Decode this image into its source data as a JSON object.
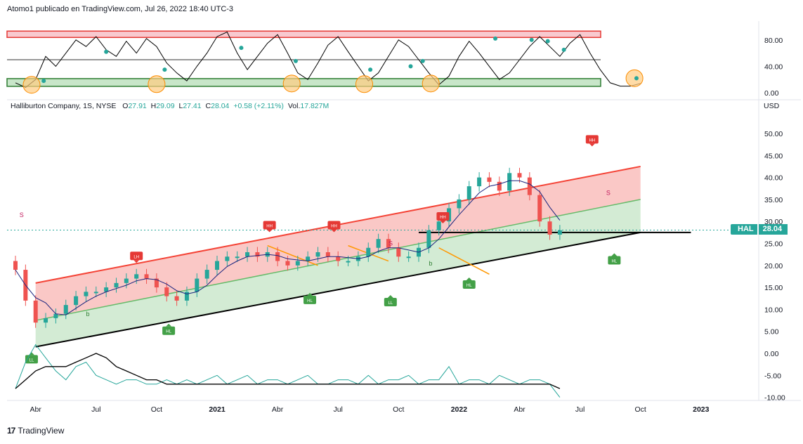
{
  "header": {
    "text": "Atomo1 publicado en TradingView.com, Jul 26, 2022 18:40 UTC-3"
  },
  "legend": {
    "symbol": "Halliburton Company, 1S, NYSE",
    "o_label": "O",
    "o": "27.91",
    "h_label": "H",
    "h": "29.09",
    "l_label": "L",
    "l": "27.41",
    "c_label": "C",
    "c": "28.04",
    "change": "+0.58 (+2.11%)",
    "vol_label": "Vol.",
    "vol": "17.827M"
  },
  "price_tag": {
    "ticker": "HAL",
    "price": "28.04"
  },
  "currency": "USD",
  "footer": {
    "brand": "TradingView"
  },
  "colors": {
    "up": "#26a69a",
    "down": "#ef5350",
    "channel_top": "#f44336",
    "channel_mid": "#66bb6a",
    "channel_bottom": "#000000"
  },
  "chart_data": [
    {
      "type": "line",
      "name_hint": "oscillator",
      "ylim": [
        0,
        100
      ],
      "y_ticks": [
        "80.00",
        "40.00",
        "0.00"
      ],
      "levels": [
        88,
        50,
        15
      ],
      "x_month": [
        0,
        0.5,
        1,
        1.5,
        2,
        2.5,
        3,
        3.5,
        4,
        4.5,
        5,
        5.5,
        6,
        6.5,
        7,
        7.5,
        8,
        8.5,
        9,
        9.5,
        10,
        10.5,
        11,
        11.5,
        12,
        12.5,
        13,
        13.5,
        14,
        14.5,
        15,
        15.5,
        16,
        16.5,
        17,
        17.5,
        18,
        18.5,
        19,
        19.5,
        20,
        20.5,
        21,
        21.5,
        22,
        22.5,
        23,
        23.5,
        24,
        24.5,
        25,
        25.5,
        26,
        26.5,
        27,
        27.5,
        28,
        28.5,
        29,
        29.5,
        30,
        30.5,
        31
      ],
      "values": [
        15,
        8,
        20,
        55,
        40,
        60,
        80,
        70,
        85,
        65,
        55,
        78,
        60,
        82,
        70,
        45,
        30,
        18,
        40,
        60,
        85,
        92,
        60,
        35,
        55,
        75,
        88,
        60,
        30,
        20,
        45,
        72,
        85,
        62,
        40,
        18,
        30,
        55,
        80,
        70,
        50,
        30,
        12,
        25,
        55,
        78,
        60,
        40,
        20,
        30,
        50,
        70,
        85,
        70,
        55,
        75,
        88,
        60,
        35,
        15,
        10,
        10,
        14
      ],
      "dots": [
        {
          "x": 1.4,
          "y": 18
        },
        {
          "x": 4.5,
          "y": 62
        },
        {
          "x": 7.4,
          "y": 35
        },
        {
          "x": 11.2,
          "y": 68
        },
        {
          "x": 13.9,
          "y": 48
        },
        {
          "x": 17.6,
          "y": 35
        },
        {
          "x": 19.6,
          "y": 40
        },
        {
          "x": 20.2,
          "y": 48
        },
        {
          "x": 23.8,
          "y": 82
        },
        {
          "x": 25.6,
          "y": 80
        },
        {
          "x": 26.4,
          "y": 78
        },
        {
          "x": 27.2,
          "y": 65
        },
        {
          "x": 30.8,
          "y": 22
        }
      ],
      "circles": [
        {
          "x": 0.8,
          "y": 12
        },
        {
          "x": 7.0,
          "y": 13
        },
        {
          "x": 13.7,
          "y": 14
        },
        {
          "x": 17.3,
          "y": 13
        },
        {
          "x": 20.6,
          "y": 14
        },
        {
          "x": 30.7,
          "y": 22
        }
      ]
    },
    {
      "type": "candlestick",
      "ylim": [
        -10,
        55
      ],
      "y_ticks": [
        "50.00",
        "45.00",
        "40.00",
        "35.00",
        "30.00",
        "25.00",
        "20.00",
        "15.00",
        "10.00",
        "5.00",
        "0.00",
        "-5.00",
        "-10.00"
      ],
      "x_labels": [
        "Abr",
        "Jul",
        "Oct",
        "2021",
        "Abr",
        "Jul",
        "Oct",
        "2022",
        "Abr",
        "Jul",
        "Oct",
        "2023"
      ],
      "x_label_month": [
        1,
        4,
        7,
        10,
        13,
        16,
        19,
        22,
        25,
        28,
        31,
        34
      ],
      "bold_labels": [
        "2021",
        "2022",
        "2023"
      ],
      "current_price": 28.04,
      "ohlc_month_step": 0.5,
      "closes": [
        19,
        12,
        7,
        8,
        9,
        11,
        13,
        14,
        14,
        15,
        16,
        17,
        18,
        17,
        15,
        13,
        12,
        14,
        17,
        19,
        21,
        22,
        22,
        23,
        22,
        23,
        21,
        20,
        21,
        22,
        23,
        22,
        21,
        21,
        22,
        24,
        26,
        24,
        22,
        22,
        24,
        28,
        30,
        33,
        35,
        38,
        40,
        39,
        37,
        41,
        40,
        36,
        30,
        27,
        28
      ],
      "channel": {
        "top": [
          [
            1,
            16
          ],
          [
            31,
            42.5
          ]
        ],
        "mid": [
          [
            1,
            7.5
          ],
          [
            31,
            35
          ]
        ],
        "bottom": [
          [
            1,
            1.5
          ],
          [
            31,
            27.5
          ]
        ],
        "support": [
          [
            20,
            27.5
          ],
          [
            33.5,
            27.5
          ]
        ]
      },
      "trend_breaks": [
        [
          [
            12.5,
            24.5
          ],
          [
            15,
            20
          ]
        ],
        [
          [
            16.5,
            24.5
          ],
          [
            18.5,
            21
          ]
        ],
        [
          [
            21,
            24
          ],
          [
            23.5,
            18
          ]
        ]
      ],
      "markers": [
        {
          "text": "LL",
          "kind": "low",
          "x": 0.8,
          "y": -1.5
        },
        {
          "text": "LH",
          "kind": "high",
          "x": 6.0,
          "y": 22
        },
        {
          "text": "HL",
          "kind": "low",
          "x": 7.6,
          "y": 5
        },
        {
          "text": "HH",
          "kind": "high",
          "x": 12.6,
          "y": 29
        },
        {
          "text": "HL",
          "kind": "low",
          "x": 14.6,
          "y": 12
        },
        {
          "text": "HH",
          "kind": "high",
          "x": 15.8,
          "y": 29
        },
        {
          "text": "LL",
          "kind": "low",
          "x": 18.6,
          "y": 11.5
        },
        {
          "text": "HH",
          "kind": "high",
          "x": 21.2,
          "y": 31
        },
        {
          "text": "HL",
          "kind": "low",
          "x": 22.5,
          "y": 15.5
        },
        {
          "text": "HH",
          "kind": "high",
          "x": 28.6,
          "y": 48.5
        },
        {
          "text": "HL",
          "kind": "low",
          "x": 29.7,
          "y": 21
        }
      ],
      "small_letters": [
        {
          "t": "S",
          "x": 0.2,
          "y": 31
        },
        {
          "t": "b",
          "x": 3.5,
          "y": 8.5
        },
        {
          "t": "S",
          "x": 18.5,
          "y": 24.5
        },
        {
          "t": "b",
          "x": 20.5,
          "y": 20
        },
        {
          "t": "S",
          "x": 29.3,
          "y": 36
        }
      ],
      "bottom_osc_values": [
        -8,
        -2,
        2,
        -1,
        -4,
        -6,
        -3,
        -2,
        -5,
        -6,
        -7,
        -6,
        -6,
        -7,
        -7,
        -6,
        -7,
        -6,
        -7,
        -6,
        -5,
        -7,
        -6,
        -5,
        -7,
        -6,
        -6,
        -7,
        -6,
        -5,
        -7,
        -7,
        -6,
        -6,
        -7,
        -5,
        -7,
        -6,
        -6,
        -5,
        -7,
        -6,
        -6,
        -3,
        -7,
        -6,
        -6,
        -7,
        -5,
        -6,
        -7,
        -6,
        -6,
        -7,
        -10
      ],
      "bottom_slow_values": [
        -8,
        -6,
        -4,
        -3,
        -3,
        -3,
        -2,
        -1,
        0,
        -1,
        -3,
        -4,
        -5,
        -6,
        -6,
        -7,
        -7,
        -7,
        -7,
        -7,
        -7,
        -7,
        -7,
        -7,
        -7,
        -7,
        -7,
        -7,
        -7,
        -7,
        -7,
        -7,
        -7,
        -7,
        -7,
        -7,
        -7,
        -7,
        -7,
        -7,
        -7,
        -7,
        -7,
        -7,
        -7,
        -7,
        -7,
        -7,
        -7,
        -7,
        -7,
        -7,
        -7,
        -7,
        -8
      ]
    }
  ]
}
